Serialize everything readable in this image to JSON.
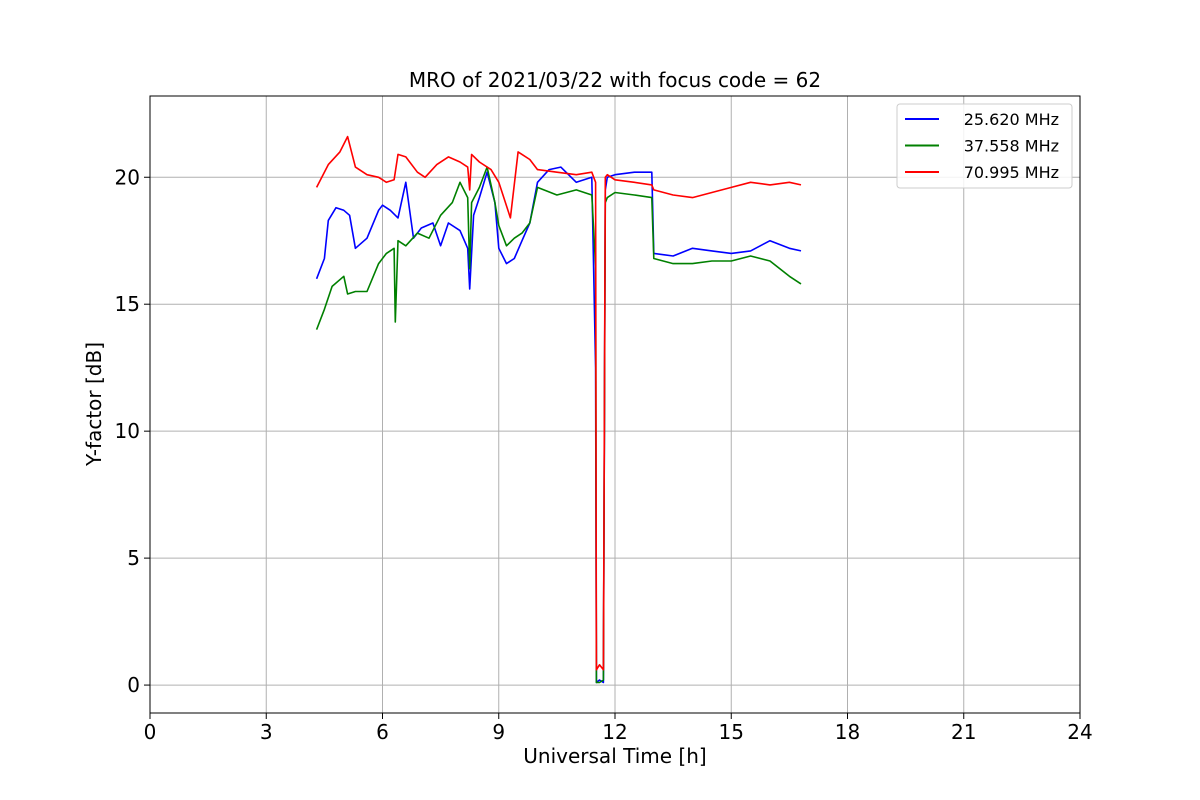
{
  "chart_data": {
    "type": "line",
    "title": "MRO of 2021/03/22 with focus code = 62",
    "xlabel": "Universal Time [h]",
    "ylabel": "Y-factor [dB]",
    "xlim": [
      0,
      24
    ],
    "ylim": [
      -1.1,
      23.2
    ],
    "xticks": [
      0,
      3,
      6,
      9,
      12,
      15,
      18,
      21,
      24
    ],
    "yticks": [
      0,
      5,
      10,
      15,
      20
    ],
    "grid": true,
    "legend": "top-right",
    "series": [
      {
        "name": "25.620 MHz",
        "color": "#0000ff",
        "x": [
          4.3,
          4.5,
          4.6,
          4.8,
          5.0,
          5.15,
          5.3,
          5.6,
          5.9,
          6.0,
          6.2,
          6.4,
          6.6,
          6.8,
          7.0,
          7.3,
          7.5,
          7.7,
          8.0,
          8.2,
          8.25,
          8.35,
          8.5,
          8.7,
          8.9,
          9.0,
          9.2,
          9.4,
          9.6,
          9.8,
          10.0,
          10.3,
          10.6,
          11.0,
          11.4,
          11.5,
          11.52,
          11.6,
          11.7,
          11.75,
          11.8,
          12.0,
          12.5,
          12.95,
          13.0,
          13.5,
          14.0,
          14.5,
          15.0,
          15.5,
          16.0,
          16.5,
          16.8
        ],
        "values": [
          16.0,
          16.8,
          18.3,
          18.8,
          18.7,
          18.5,
          17.2,
          17.6,
          18.7,
          18.9,
          18.7,
          18.4,
          19.8,
          17.6,
          18.0,
          18.2,
          17.3,
          18.2,
          17.9,
          17.2,
          15.6,
          18.5,
          19.2,
          20.2,
          19.0,
          17.2,
          16.6,
          16.8,
          17.5,
          18.2,
          19.8,
          20.3,
          20.4,
          19.8,
          20.0,
          12.5,
          0.1,
          0.2,
          0.1,
          19.5,
          20.0,
          20.1,
          20.2,
          20.2,
          17.0,
          16.9,
          17.2,
          17.1,
          17.0,
          17.1,
          17.5,
          17.2,
          17.1
        ]
      },
      {
        "name": "37.558 MHz",
        "color": "#008000",
        "x": [
          4.3,
          4.5,
          4.7,
          5.0,
          5.1,
          5.3,
          5.6,
          5.9,
          6.1,
          6.3,
          6.33,
          6.4,
          6.6,
          6.9,
          7.2,
          7.5,
          7.8,
          8.0,
          8.2,
          8.25,
          8.3,
          8.5,
          8.7,
          8.9,
          9.0,
          9.2,
          9.4,
          9.6,
          9.8,
          10.0,
          10.5,
          11.0,
          11.4,
          11.5,
          11.52,
          11.6,
          11.7,
          11.75,
          11.8,
          12.0,
          12.5,
          12.95,
          13.0,
          13.5,
          14.0,
          14.5,
          15.0,
          15.5,
          16.0,
          16.5,
          16.8
        ],
        "values": [
          14.0,
          14.8,
          15.7,
          16.1,
          15.4,
          15.5,
          15.5,
          16.6,
          17.0,
          17.2,
          14.3,
          17.5,
          17.3,
          17.8,
          17.6,
          18.5,
          19.0,
          19.8,
          19.2,
          16.4,
          19.0,
          19.6,
          20.4,
          19.0,
          18.1,
          17.3,
          17.6,
          17.8,
          18.2,
          19.6,
          19.3,
          19.5,
          19.3,
          16.5,
          0.1,
          0.1,
          0.2,
          19.0,
          19.2,
          19.4,
          19.3,
          19.2,
          16.8,
          16.6,
          16.6,
          16.7,
          16.7,
          16.9,
          16.7,
          16.1,
          15.8
        ]
      },
      {
        "name": "70.995 MHz",
        "color": "#ff0000",
        "x": [
          4.3,
          4.6,
          4.9,
          5.1,
          5.3,
          5.6,
          5.9,
          6.1,
          6.3,
          6.4,
          6.6,
          6.9,
          7.1,
          7.4,
          7.7,
          8.0,
          8.2,
          8.25,
          8.3,
          8.5,
          8.8,
          9.0,
          9.3,
          9.5,
          9.6,
          9.8,
          10.0,
          10.5,
          11.0,
          11.4,
          11.5,
          11.52,
          11.6,
          11.7,
          11.75,
          11.8,
          12.0,
          12.5,
          12.95,
          13.0,
          13.5,
          14.0,
          14.5,
          15.0,
          15.5,
          16.0,
          16.5,
          16.8
        ],
        "values": [
          19.6,
          20.5,
          21.0,
          21.6,
          20.4,
          20.1,
          20.0,
          19.8,
          19.9,
          20.9,
          20.8,
          20.2,
          20.0,
          20.5,
          20.8,
          20.6,
          20.4,
          19.5,
          20.9,
          20.6,
          20.3,
          19.8,
          18.4,
          21.0,
          20.9,
          20.7,
          20.3,
          20.2,
          20.1,
          20.2,
          19.8,
          0.6,
          0.8,
          0.6,
          20.0,
          20.1,
          19.9,
          19.8,
          19.7,
          19.5,
          19.3,
          19.2,
          19.4,
          19.6,
          19.8,
          19.7,
          19.8,
          19.7
        ]
      }
    ]
  }
}
